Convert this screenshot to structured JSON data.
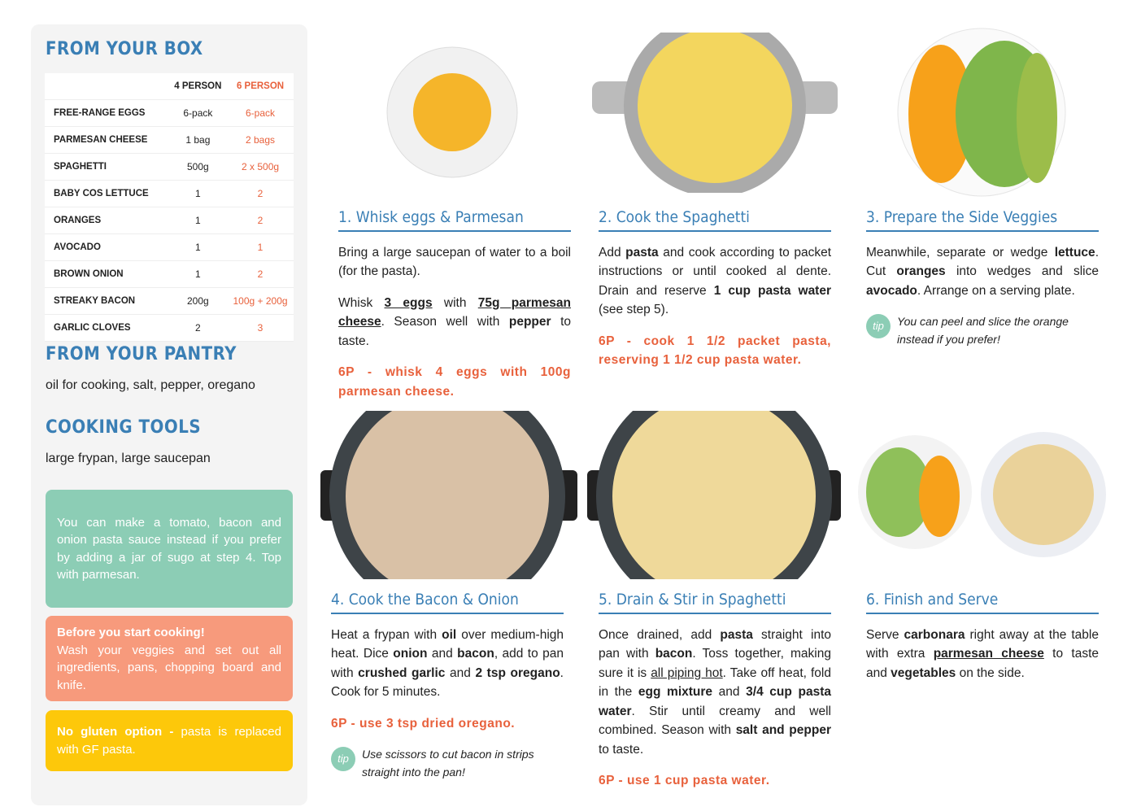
{
  "sidebar": {
    "box_title": "FROM YOUR BOX",
    "table": {
      "header": [
        "4 PERSON",
        "6 PERSON"
      ],
      "rows": [
        [
          "FREE-RANGE EGGS",
          "6-pack",
          "6-pack"
        ],
        [
          "PARMESAN CHEESE",
          "1 bag",
          "2 bags"
        ],
        [
          "SPAGHETTI",
          "500g",
          "2 x 500g"
        ],
        [
          "BABY COS LETTUCE",
          "1",
          "2"
        ],
        [
          "ORANGES",
          "1",
          "2"
        ],
        [
          "AVOCADO",
          "1",
          "1"
        ],
        [
          "BROWN ONION",
          "1",
          "2"
        ],
        [
          "STREAKY BACON",
          "200g",
          "100g + 200g"
        ],
        [
          "GARLIC CLOVES",
          "2",
          "3"
        ]
      ]
    },
    "pantry_title": "FROM YOUR PANTRY",
    "pantry_text": "oil for cooking, salt, pepper, oregano",
    "tools_title": "COOKING TOOLS",
    "tools_text": "large frypan, large saucepan",
    "notes": [
      {
        "text": "You can make a tomato, bacon and onion pasta sauce instead if you prefer by adding a jar of sugo at step 4. Top with parmesan."
      },
      {
        "heading": "Before you start cooking!",
        "text": "Wash your veggies and set out all ingredients, pans, chopping board and knife."
      },
      {
        "heading": "No gluten option -",
        "text": "pasta is replaced with GF pasta."
      }
    ]
  },
  "steps": [
    {
      "title": "1. Whisk eggs & Parmesan",
      "paragraphs": [
        [
          "Bring a large saucepan of water to a boil (for the pasta)."
        ],
        [
          "Whisk ",
          "3 eggs",
          " with ",
          "75g parmesan cheese",
          ". Season well with ",
          "pepper",
          " to taste."
        ]
      ],
      "variant": "6P - whisk 4 eggs with 100g parmesan cheese."
    },
    {
      "title": "2. Cook the Spaghetti",
      "paragraphs": [
        [
          "Add ",
          "pasta",
          " and cook according to packet instructions or until cooked al dente. Drain and reserve ",
          "1 cup pasta water",
          " (see step 5)."
        ]
      ],
      "variant": "6P - cook 1 1/2 packet pasta, reserving 1 1/2 cup pasta water."
    },
    {
      "title": "3. Prepare the Side Veggies",
      "paragraphs": [
        [
          "Meanwhile, separate or wedge ",
          "lettuce",
          ". Cut ",
          "oranges",
          " into wedges and slice ",
          "avocado",
          ". Arrange on a serving plate."
        ]
      ],
      "tip": {
        "label": "tip",
        "text": "You can peel and slice the orange instead if you prefer!"
      }
    },
    {
      "title": "4. Cook the Bacon & Onion",
      "paragraphs": [
        [
          "Heat a frypan with ",
          "oil",
          " over medium-high heat. Dice ",
          "onion",
          " and ",
          "bacon",
          ", add to pan with ",
          "crushed garlic",
          " and ",
          "2 tsp oregano",
          ". Cook for 5 minutes."
        ]
      ],
      "variant": "6P - use 3 tsp dried oregano.",
      "tip": {
        "label": "tip",
        "text": "Use scissors to cut bacon in strips straight into the pan!"
      }
    },
    {
      "title": "5. Drain & Stir in Spaghetti",
      "paragraphs": [
        [
          "Once drained, add ",
          "pasta",
          " straight into pan with ",
          "bacon",
          ". Toss together, making sure it is ",
          "all piping hot",
          ". Take off heat, fold in the ",
          "egg mixture",
          " and ",
          "3/4 cup pasta water",
          ". Stir until creamy and well combined. Season with ",
          "salt and pepper",
          " to taste."
        ]
      ],
      "variant": "6P - use 1 cup pasta water."
    },
    {
      "title": "6. Finish and Serve",
      "paragraphs": [
        [
          "Serve ",
          "carbonara",
          " right away at the table with extra ",
          "parmesan cheese",
          " to taste and ",
          "vegetables",
          " on the side."
        ]
      ]
    }
  ]
}
